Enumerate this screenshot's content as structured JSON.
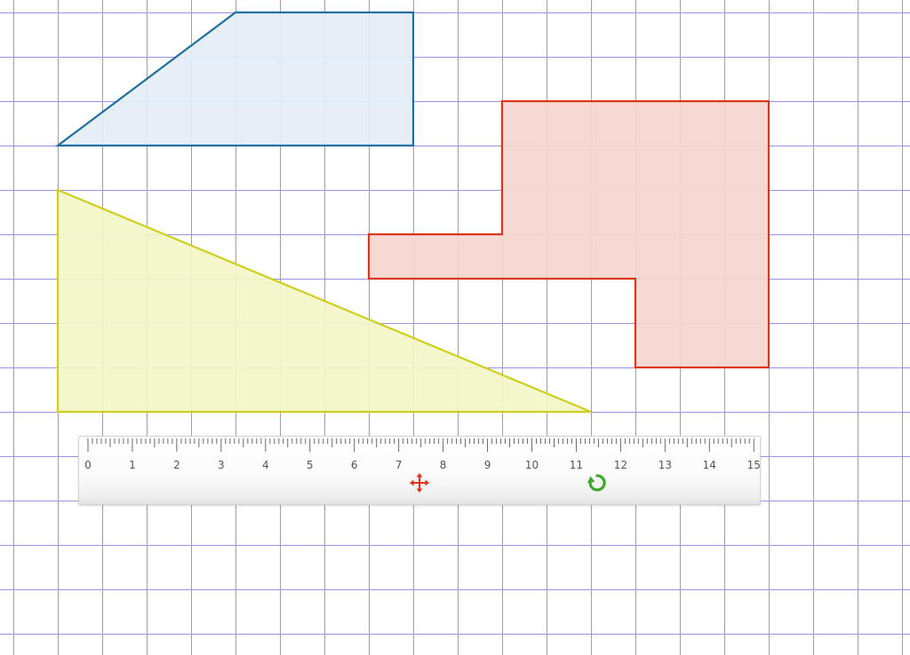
{
  "grid": {
    "line_color": "#9a93e6",
    "background": "#ffffff"
  },
  "shapes": [
    {
      "name": "trapezoid",
      "stroke": "#1f6fa3",
      "fill": "#e4eef6"
    },
    {
      "name": "l-shaped-polygon",
      "stroke": "#d9361a",
      "fill": "#f5d6ce"
    },
    {
      "name": "right-triangle",
      "stroke": "#cfcf1e",
      "fill": "#f3f5c7"
    }
  ],
  "ruler": {
    "labels": [
      "0",
      "1",
      "2",
      "3",
      "4",
      "5",
      "6",
      "7",
      "8",
      "9",
      "10",
      "11",
      "12",
      "13",
      "14",
      "15"
    ],
    "tick_color": "#6a6a6a",
    "label_color": "#555555",
    "move_handle": {
      "icon": "move-arrows-icon",
      "color": "#e0321c"
    },
    "rotate_handle": {
      "icon": "rotate-icon",
      "color": "#3ea82a"
    }
  }
}
